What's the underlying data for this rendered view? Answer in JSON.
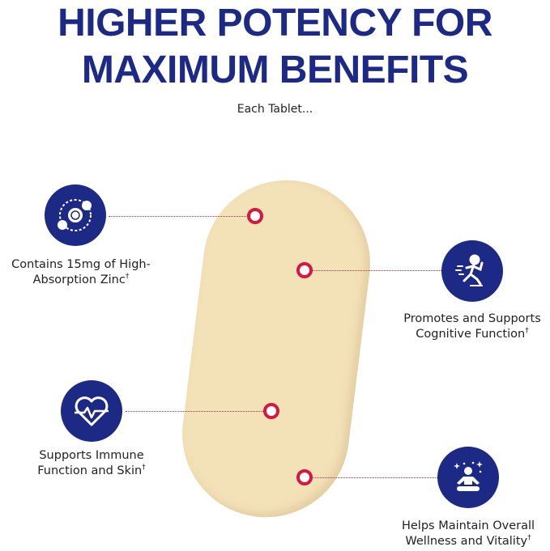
{
  "header": {
    "title_line1": "HIGHER POTENCY FOR",
    "title_line2": "MAXIMUM BENEFITS",
    "subtitle": "Each Tablet..."
  },
  "colors": {
    "navy": "#1c2a86",
    "accent_red": "#d6173f",
    "tablet": "#f3e1b8"
  },
  "benefits": [
    {
      "icon": "zinc-atom-icon",
      "line1": "Contains 15mg of High-",
      "line2": "Absorption Zinc",
      "mark": "†"
    },
    {
      "icon": "running-person-icon",
      "line1": "Promotes and Supports",
      "line2": "Cognitive Function",
      "mark": "†"
    },
    {
      "icon": "heart-pulse-icon",
      "line1": "Supports Immune",
      "line2": "Function and Skin",
      "mark": "†"
    },
    {
      "icon": "meditation-icon",
      "line1": "Helps Maintain Overall",
      "line2": "Wellness and Vitality",
      "mark": "†"
    }
  ]
}
